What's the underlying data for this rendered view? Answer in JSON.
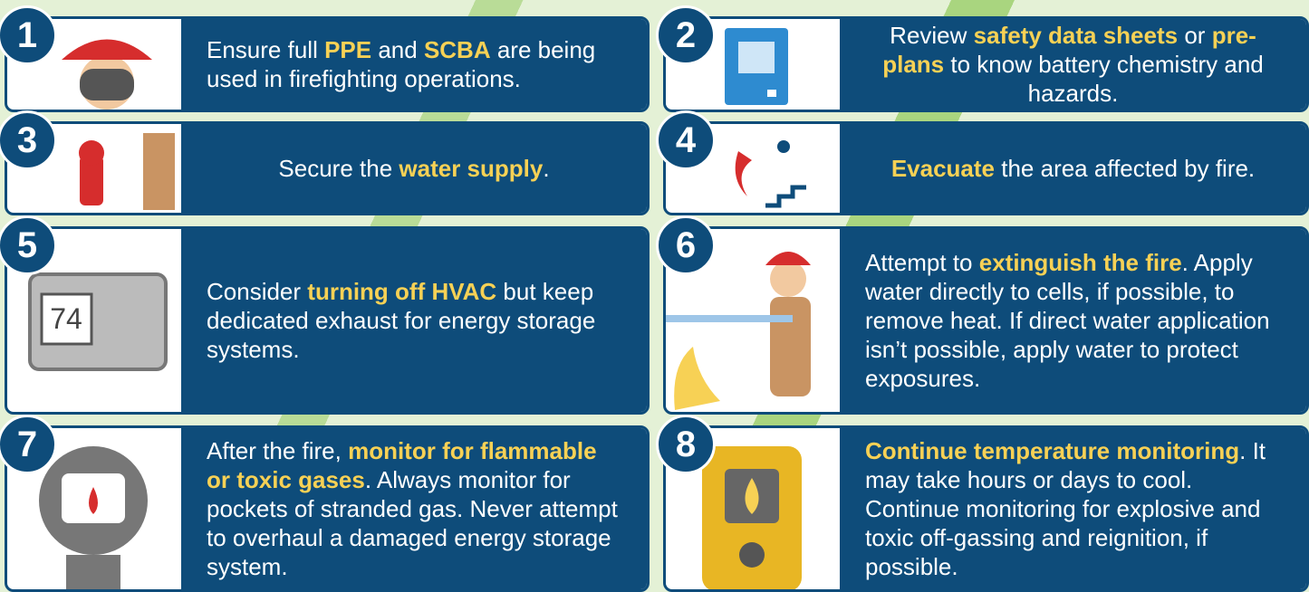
{
  "steps": [
    {
      "number": "1",
      "segments": [
        "Ensure full ",
        {
          "text": "PPE",
          "highlight": true
        },
        " and ",
        {
          "text": "SCBA",
          "highlight": true
        },
        " are being used in firefighting operations."
      ]
    },
    {
      "number": "2",
      "segments": [
        "Review ",
        {
          "text": "safety data sheets",
          "highlight": true
        },
        " or ",
        {
          "text": "pre-plans",
          "highlight": true
        },
        " to know battery chemistry and hazards."
      ]
    },
    {
      "number": "3",
      "segments": [
        "Secure the ",
        {
          "text": "water supply",
          "highlight": true
        },
        "."
      ]
    },
    {
      "number": "4",
      "segments": [
        {
          "text": "Evacuate",
          "highlight": true
        },
        " the area affected by fire."
      ]
    },
    {
      "number": "5",
      "segments": [
        "Consider ",
        {
          "text": "turning off HVAC",
          "highlight": true
        },
        " but keep dedicated exhaust for energy storage systems."
      ]
    },
    {
      "number": "6",
      "segments": [
        "Attempt to ",
        {
          "text": "extinguish the fire",
          "highlight": true
        },
        ". Apply water directly to cells, if possible, to remove heat. If direct water application isn’t possible, apply water to protect exposures."
      ]
    },
    {
      "number": "7",
      "segments": [
        "After the fire, ",
        {
          "text": "monitor for flammable or toxic gases",
          "highlight": true
        },
        ". Always monitor for pockets of stranded gas. Never attempt to overhaul a damaged energy storage system."
      ]
    },
    {
      "number": "8",
      "segments": [
        {
          "text": "Continue temperature monitoring",
          "highlight": true
        },
        ". It may take hours or days to cool. Continue monitoring for explosive and toxic off-gassing and reignition, if possible."
      ]
    }
  ]
}
